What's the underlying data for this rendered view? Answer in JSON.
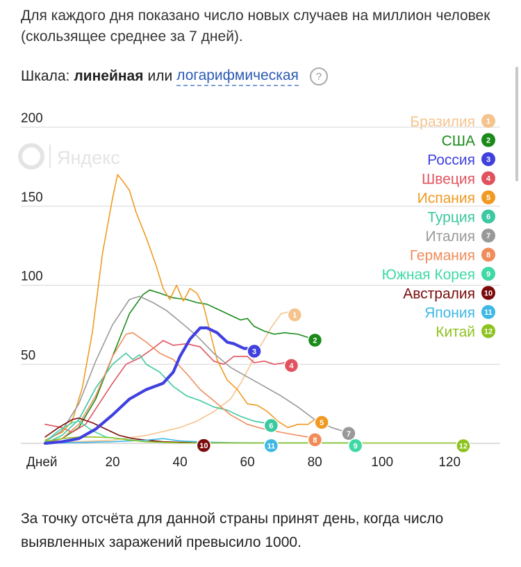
{
  "intro": "Для каждого дня показано число новых случаев на миллион человек (скользящее среднее за 7 дней).",
  "scale": {
    "prefix": "Шкала:",
    "linear": "линейная",
    "or": "или",
    "log": "логарифмическая",
    "help": "?"
  },
  "footnote": "За точку отсчёта для данной страны принят день, когда число выявленных заражений превысило 1000.",
  "chart_data": {
    "type": "line",
    "xlabel": "Дней",
    "xlim": [
      0,
      135
    ],
    "ylim": [
      0,
      200
    ],
    "x_ticks": [
      20,
      40,
      60,
      80,
      100,
      120
    ],
    "y_ticks": [
      50,
      100,
      150,
      200
    ],
    "grid": true,
    "legend_position": "top-right",
    "watermark": "Яндекс",
    "series": [
      {
        "name": "Бразилия",
        "badge": "1",
        "color": "#f5c48e",
        "width": 1.6,
        "points": [
          [
            0,
            0
          ],
          [
            10,
            1
          ],
          [
            20,
            2
          ],
          [
            30,
            5
          ],
          [
            40,
            10
          ],
          [
            45,
            14
          ],
          [
            50,
            20
          ],
          [
            55,
            28
          ],
          [
            58,
            38
          ],
          [
            61,
            50
          ],
          [
            64,
            62
          ],
          [
            67,
            73
          ],
          [
            70,
            82
          ],
          [
            72,
            83
          ]
        ]
      },
      {
        "name": "США",
        "badge": "2",
        "color": "#1b8a1b",
        "width": 1.6,
        "points": [
          [
            0,
            1
          ],
          [
            5,
            3
          ],
          [
            10,
            10
          ],
          [
            15,
            28
          ],
          [
            20,
            55
          ],
          [
            25,
            82
          ],
          [
            29,
            94
          ],
          [
            31,
            97
          ],
          [
            34,
            95
          ],
          [
            38,
            92
          ],
          [
            42,
            91
          ],
          [
            45,
            89
          ],
          [
            48,
            88
          ],
          [
            52,
            84
          ],
          [
            56,
            80
          ],
          [
            58,
            78
          ],
          [
            60,
            79
          ],
          [
            62,
            74
          ],
          [
            65,
            71
          ],
          [
            68,
            69
          ],
          [
            71,
            70
          ],
          [
            75,
            69
          ],
          [
            78,
            67
          ]
        ]
      },
      {
        "name": "Россия",
        "badge": "3",
        "color": "#4040e0",
        "width": 4.2,
        "points": [
          [
            0,
            0
          ],
          [
            5,
            1
          ],
          [
            10,
            3
          ],
          [
            15,
            9
          ],
          [
            20,
            18
          ],
          [
            25,
            28
          ],
          [
            30,
            34
          ],
          [
            35,
            38
          ],
          [
            38,
            45
          ],
          [
            40,
            55
          ],
          [
            43,
            66
          ],
          [
            46,
            73
          ],
          [
            48,
            73
          ],
          [
            51,
            70
          ],
          [
            54,
            64
          ],
          [
            56,
            63
          ],
          [
            59,
            60
          ],
          [
            60,
            60
          ]
        ]
      },
      {
        "name": "Швеция",
        "badge": "4",
        "color": "#e0535e",
        "width": 1.6,
        "points": [
          [
            0,
            12
          ],
          [
            5,
            10
          ],
          [
            8,
            7
          ],
          [
            12,
            12
          ],
          [
            16,
            25
          ],
          [
            20,
            38
          ],
          [
            24,
            50
          ],
          [
            28,
            54
          ],
          [
            32,
            60
          ],
          [
            35,
            65
          ],
          [
            38,
            62
          ],
          [
            42,
            63
          ],
          [
            46,
            61
          ],
          [
            50,
            52
          ],
          [
            53,
            50
          ],
          [
            56,
            55
          ],
          [
            60,
            55
          ],
          [
            62,
            51
          ],
          [
            65,
            52
          ],
          [
            68,
            50
          ],
          [
            71,
            51
          ]
        ]
      },
      {
        "name": "Испания",
        "badge": "5",
        "color": "#f09a22",
        "width": 1.6,
        "points": [
          [
            0,
            2
          ],
          [
            5,
            7
          ],
          [
            8,
            14
          ],
          [
            11,
            35
          ],
          [
            14,
            70
          ],
          [
            17,
            120
          ],
          [
            20,
            155
          ],
          [
            21.5,
            170
          ],
          [
            23,
            166
          ],
          [
            25,
            160
          ],
          [
            27,
            146
          ],
          [
            30,
            130
          ],
          [
            33,
            112
          ],
          [
            35,
            98
          ],
          [
            37,
            91
          ],
          [
            39,
            100
          ],
          [
            41,
            90
          ],
          [
            43,
            98
          ],
          [
            45,
            95
          ],
          [
            47,
            87
          ],
          [
            49,
            70
          ],
          [
            51,
            53
          ],
          [
            54,
            40
          ],
          [
            57,
            34
          ],
          [
            60,
            25
          ],
          [
            63,
            24
          ],
          [
            66,
            20
          ],
          [
            69,
            14
          ],
          [
            72,
            10
          ],
          [
            75,
            12
          ],
          [
            78,
            12
          ],
          [
            80,
            15
          ]
        ]
      },
      {
        "name": "Турция",
        "badge": "6",
        "color": "#3cc8a0",
        "width": 1.6,
        "points": [
          [
            0,
            0
          ],
          [
            5,
            5
          ],
          [
            10,
            15
          ],
          [
            15,
            35
          ],
          [
            20,
            50
          ],
          [
            24,
            57
          ],
          [
            26,
            53
          ],
          [
            28,
            56
          ],
          [
            30,
            50
          ],
          [
            34,
            45
          ],
          [
            38,
            36
          ],
          [
            42,
            30
          ],
          [
            46,
            27
          ],
          [
            50,
            23
          ],
          [
            54,
            21
          ],
          [
            58,
            17
          ],
          [
            62,
            14
          ],
          [
            65,
            13
          ]
        ]
      },
      {
        "name": "Италия",
        "badge": "7",
        "color": "#999999",
        "width": 1.6,
        "points": [
          [
            0,
            1
          ],
          [
            5,
            8
          ],
          [
            10,
            25
          ],
          [
            15,
            52
          ],
          [
            20,
            75
          ],
          [
            25,
            91
          ],
          [
            28,
            93
          ],
          [
            32,
            89
          ],
          [
            36,
            84
          ],
          [
            40,
            77
          ],
          [
            45,
            68
          ],
          [
            50,
            57
          ],
          [
            55,
            48
          ],
          [
            60,
            42
          ],
          [
            65,
            36
          ],
          [
            70,
            30
          ],
          [
            75,
            23
          ],
          [
            80,
            15
          ],
          [
            85,
            10
          ],
          [
            88,
            8
          ]
        ]
      },
      {
        "name": "Германия",
        "badge": "8",
        "color": "#f08c5a",
        "width": 1.6,
        "points": [
          [
            0,
            0
          ],
          [
            5,
            3
          ],
          [
            10,
            12
          ],
          [
            15,
            30
          ],
          [
            20,
            55
          ],
          [
            24,
            69
          ],
          [
            26,
            70
          ],
          [
            30,
            64
          ],
          [
            34,
            57
          ],
          [
            38,
            53
          ],
          [
            42,
            44
          ],
          [
            46,
            34
          ],
          [
            50,
            27
          ],
          [
            55,
            18
          ],
          [
            60,
            12
          ],
          [
            65,
            9
          ],
          [
            70,
            7
          ],
          [
            75,
            5
          ],
          [
            78,
            4
          ]
        ]
      },
      {
        "name": "Южная Корея",
        "badge": "9",
        "color": "#3fd9a6",
        "width": 1.6,
        "points": [
          [
            0,
            1
          ],
          [
            4,
            8
          ],
          [
            8,
            13
          ],
          [
            10,
            14
          ],
          [
            14,
            8
          ],
          [
            18,
            4
          ],
          [
            22,
            3
          ],
          [
            30,
            1
          ],
          [
            40,
            0.5
          ],
          [
            50,
            0.3
          ],
          [
            60,
            0.3
          ],
          [
            75,
            0.3
          ],
          [
            90,
            0.3
          ]
        ]
      },
      {
        "name": "Австралия",
        "badge": "10",
        "color": "#7a0a0a",
        "width": 1.6,
        "points": [
          [
            0,
            4
          ],
          [
            4,
            10
          ],
          [
            8,
            15
          ],
          [
            10,
            16
          ],
          [
            14,
            13
          ],
          [
            18,
            9
          ],
          [
            22,
            5
          ],
          [
            26,
            3
          ],
          [
            30,
            2
          ],
          [
            35,
            1
          ],
          [
            40,
            0.6
          ],
          [
            45,
            0.4
          ]
        ]
      },
      {
        "name": "Япония",
        "badge": "11",
        "color": "#3fb8e6",
        "width": 1.6,
        "points": [
          [
            0,
            0
          ],
          [
            10,
            0.5
          ],
          [
            20,
            1
          ],
          [
            30,
            2
          ],
          [
            35,
            3
          ],
          [
            40,
            1.5
          ],
          [
            45,
            1
          ],
          [
            50,
            0.6
          ],
          [
            55,
            0.4
          ],
          [
            60,
            0.3
          ],
          [
            65,
            0.3
          ]
        ]
      },
      {
        "name": "Китай",
        "badge": "12",
        "color": "#8dc21f",
        "width": 1.6,
        "points": [
          [
            0,
            1
          ],
          [
            5,
            3
          ],
          [
            10,
            4
          ],
          [
            15,
            4
          ],
          [
            20,
            3.5
          ],
          [
            25,
            2
          ],
          [
            30,
            1
          ],
          [
            40,
            0.3
          ],
          [
            60,
            0.2
          ],
          [
            80,
            0.2
          ],
          [
            100,
            0.2
          ],
          [
            122,
            0.2
          ]
        ]
      }
    ]
  }
}
